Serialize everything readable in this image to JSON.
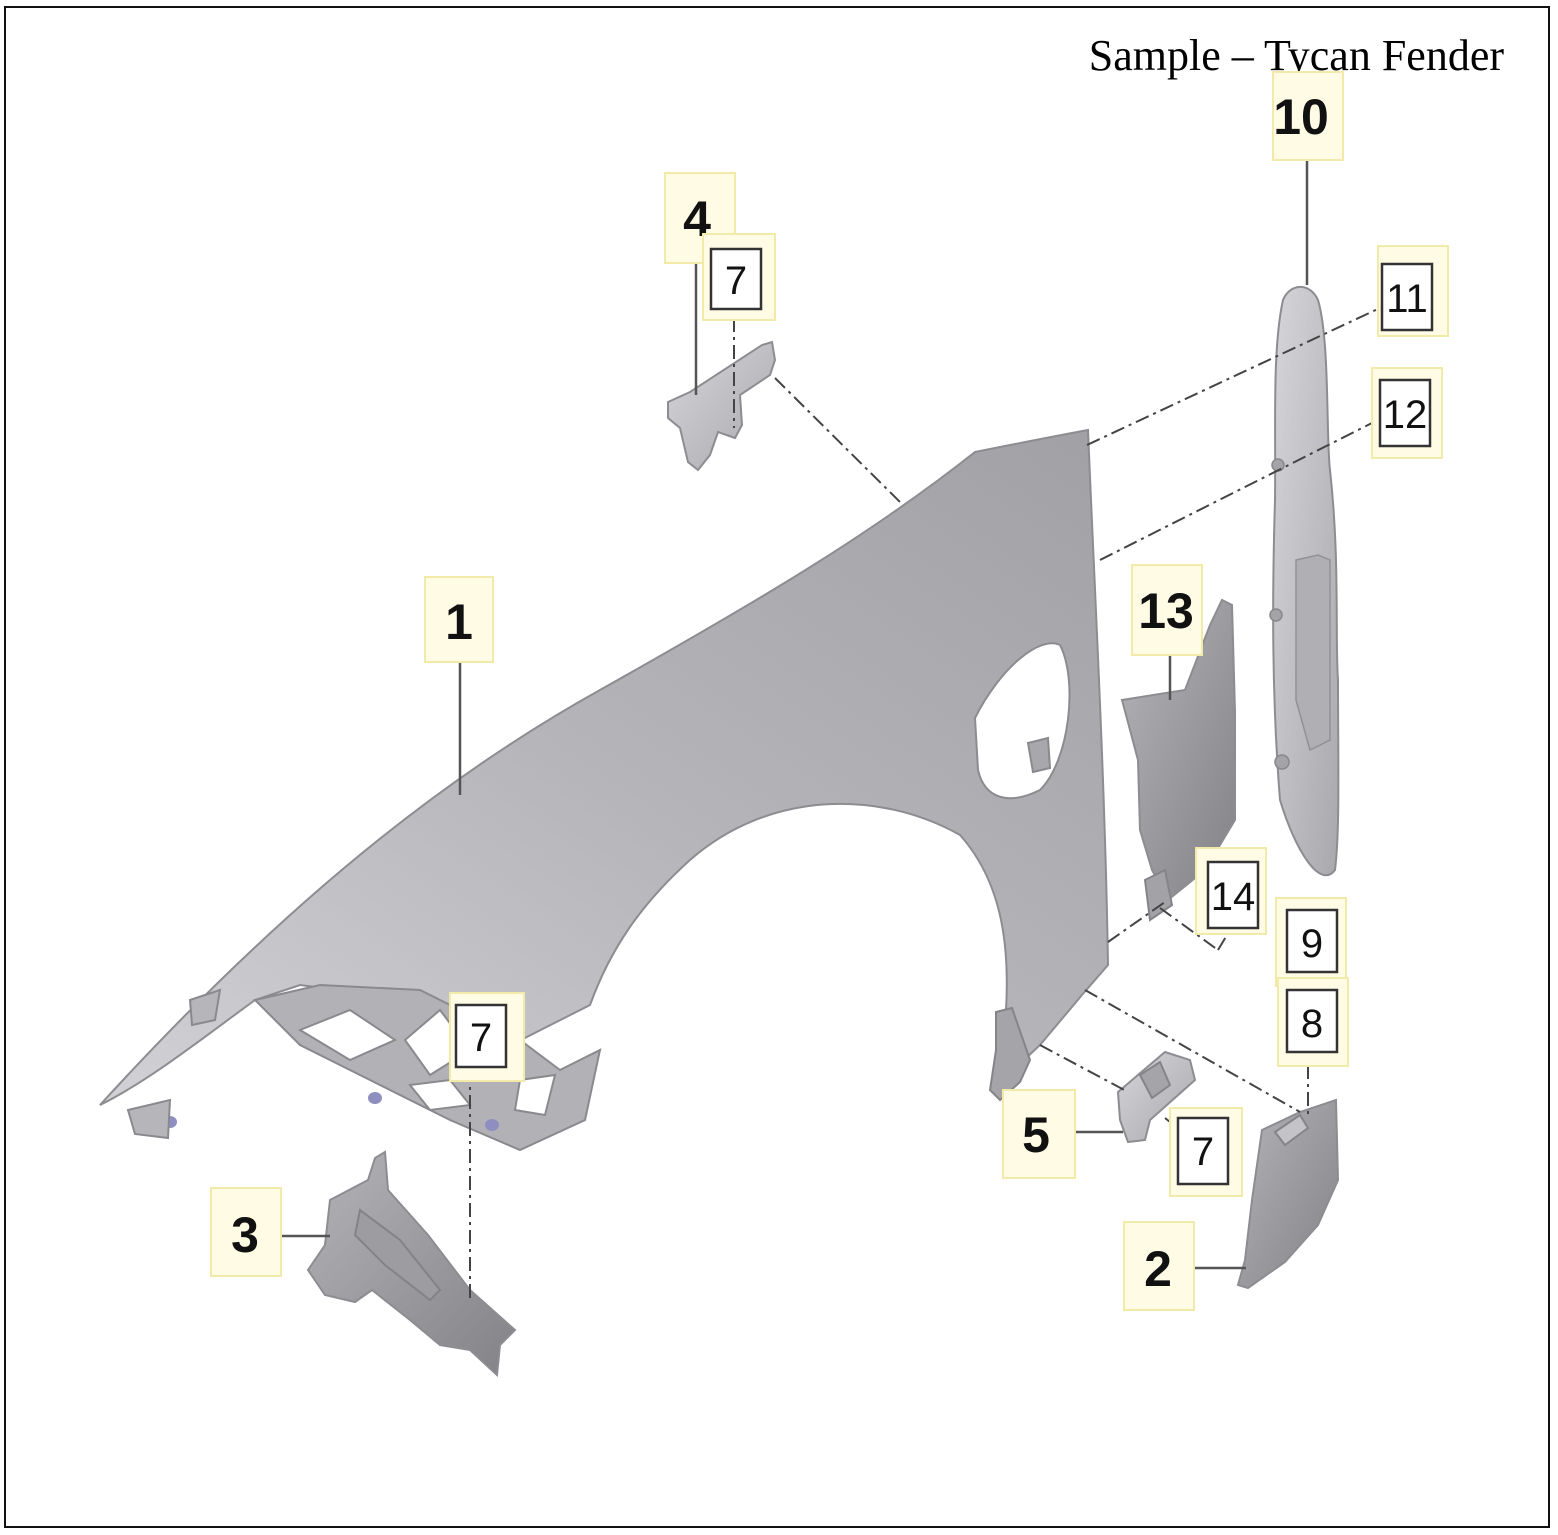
{
  "title": "Sample – Tycan Fender",
  "callouts": {
    "c1": "1",
    "c2": "2",
    "c3": "3",
    "c4": "4",
    "c5": "5",
    "c7a": "7",
    "c7b": "7",
    "c7c": "7",
    "c8": "8",
    "c9": "9",
    "c10": "10",
    "c11": "11",
    "c12": "12",
    "c13": "13",
    "c14": "14"
  },
  "colors": {
    "part_fill": "#b9b9bd",
    "label_highlight": "#fffbe4",
    "frame": "#111111"
  }
}
